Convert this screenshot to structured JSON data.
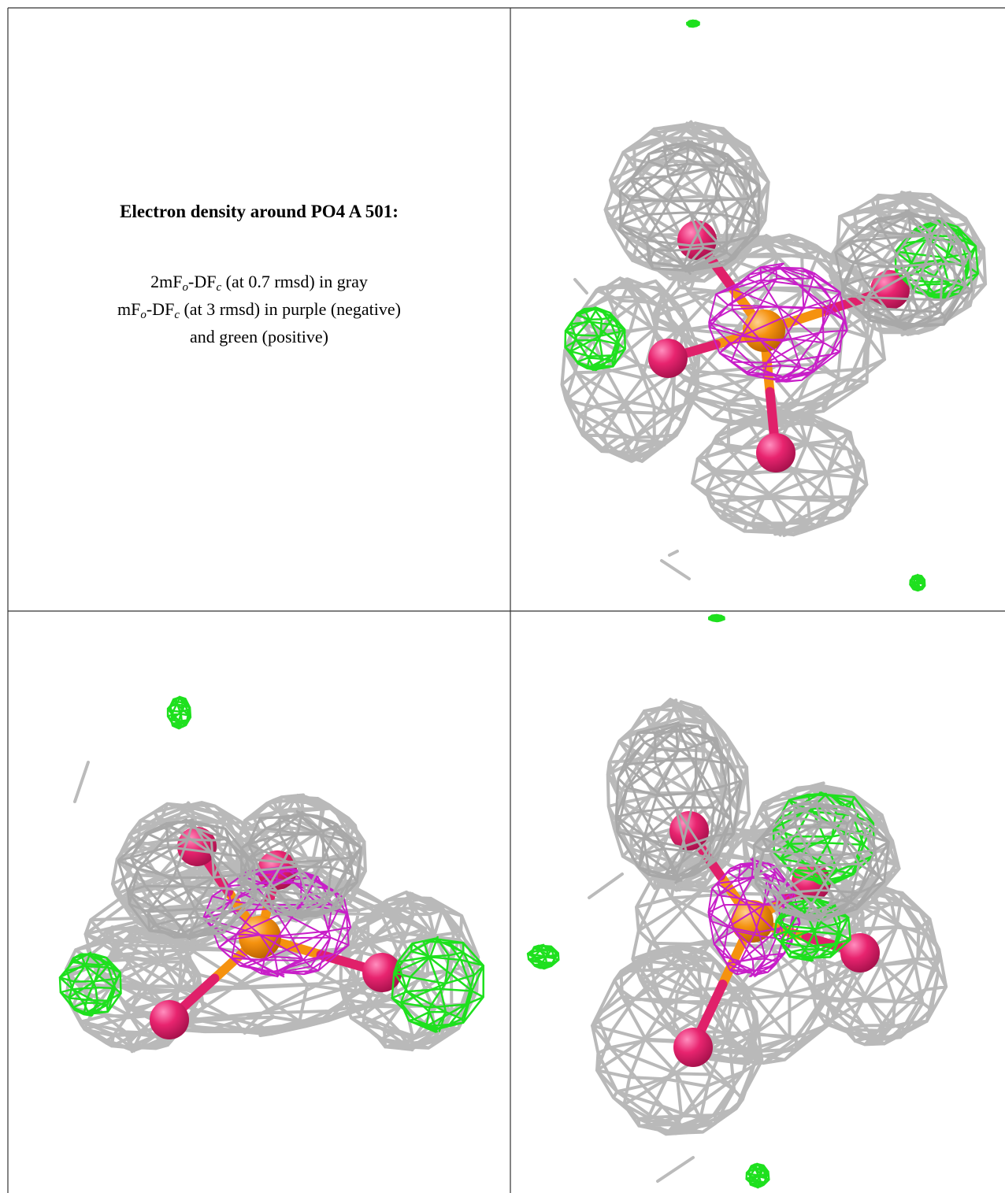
{
  "panel": {
    "title": "Electron density around PO4 A 501:",
    "caption": [
      [
        "2mF",
        "o",
        "-DF",
        "c",
        " (at 0.7 rmsd) in gray"
      ],
      [
        "mF",
        "o",
        "-DF",
        "c",
        " (at 3 rmsd) in purple (negative)"
      ],
      [
        "and green (positive)"
      ]
    ]
  }
}
